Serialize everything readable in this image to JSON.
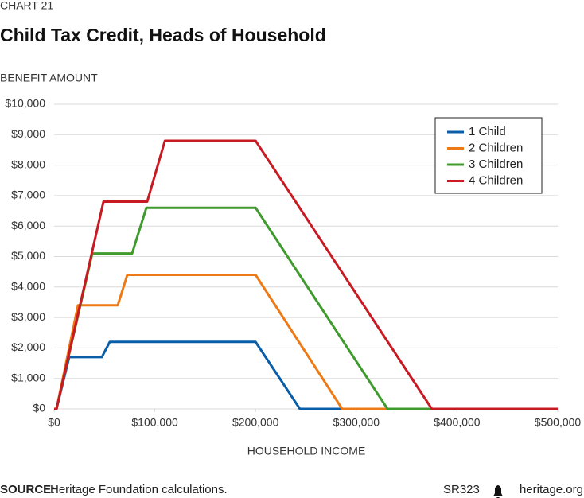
{
  "chart_data": {
    "type": "line",
    "chart_label": "CHART 21",
    "title": "Child Tax Credit, Heads of Household",
    "y_label": "BENEFIT AMOUNT",
    "x_label": "HOUSEHOLD INCOME",
    "source_label": "SOURCE:",
    "source": "Heritage Foundation calculations.",
    "report_id": "SR323",
    "site": "heritage.org",
    "xlim": [
      0,
      500000
    ],
    "ylim": [
      0,
      10000
    ],
    "xticks": [
      {
        "value": 0,
        "label": "$0"
      },
      {
        "value": 100000,
        "label": "$100,000"
      },
      {
        "value": 200000,
        "label": "$200,000"
      },
      {
        "value": 300000,
        "label": "$300,000"
      },
      {
        "value": 400000,
        "label": "$400,000"
      },
      {
        "value": 500000,
        "label": "$500,000"
      }
    ],
    "yticks": [
      {
        "value": 0,
        "label": "$0"
      },
      {
        "value": 1000,
        "label": "$1,000"
      },
      {
        "value": 2000,
        "label": "$2,000"
      },
      {
        "value": 3000,
        "label": "$3,000"
      },
      {
        "value": 4000,
        "label": "$4,000"
      },
      {
        "value": 5000,
        "label": "$5,000"
      },
      {
        "value": 6000,
        "label": "$6,000"
      },
      {
        "value": 7000,
        "label": "$7,000"
      },
      {
        "value": 8000,
        "label": "$8,000"
      },
      {
        "value": 9000,
        "label": "$9,000"
      },
      {
        "value": 10000,
        "label": "$10,000"
      }
    ],
    "grid": true,
    "legend_position": "upper right",
    "series": [
      {
        "name": "1 Child",
        "color": "#0a5ea8",
        "x": [
          0,
          2400,
          15000,
          47400,
          55300,
          200000,
          244000,
          500000
        ],
        "values": [
          0,
          0,
          1700,
          1700,
          2200,
          2200,
          0,
          0
        ]
      },
      {
        "name": "2 Children",
        "color": "#ee7a16",
        "x": [
          0,
          2400,
          23700,
          63200,
          72700,
          200000,
          286000,
          500000
        ],
        "values": [
          0,
          0,
          3400,
          3400,
          4400,
          4400,
          0,
          0
        ]
      },
      {
        "name": "3 Children",
        "color": "#3f9b2d",
        "x": [
          0,
          2400,
          37900,
          77400,
          91600,
          200000,
          331000,
          500000
        ],
        "values": [
          0,
          0,
          5100,
          5100,
          6600,
          6600,
          0,
          0
        ]
      },
      {
        "name": "4 Children",
        "color": "#c81a22",
        "x": [
          0,
          2400,
          49000,
          92400,
          110000,
          200000,
          375000,
          500000
        ],
        "values": [
          0,
          0,
          6800,
          6800,
          8800,
          8800,
          0,
          0
        ]
      }
    ]
  }
}
